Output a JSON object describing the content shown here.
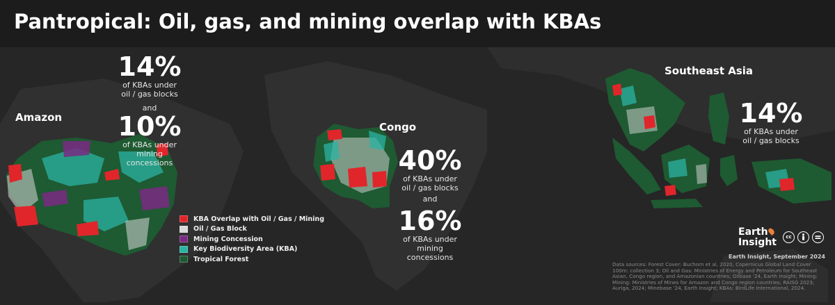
{
  "title": "Pantropical: Oil, gas, and mining overlap with KBAs",
  "regions": {
    "amazon": {
      "label": "Amazon",
      "stat1": {
        "value": "14%",
        "text": "of KBAs under\noil / gas blocks"
      },
      "connector": "and",
      "stat2": {
        "value": "10%",
        "text": "of KBAs under\nmining\nconcessions"
      }
    },
    "congo": {
      "label": "Congo",
      "stat1": {
        "value": "40%",
        "text": "of KBAs under\noil / gas blocks"
      },
      "connector": "and",
      "stat2": {
        "value": "16%",
        "text": "of KBAs under\nmining\nconcessions"
      }
    },
    "southeast_asia": {
      "label": "Southeast Asia",
      "stat1": {
        "value": "14%",
        "text": "of KBAs under\noil / gas blocks"
      }
    }
  },
  "legend": [
    {
      "label": "KBA Overlap with Oil / Gas / Mining",
      "color": "#e0262b"
    },
    {
      "label": "Oil / Gas Block",
      "color": "#d9d9d9"
    },
    {
      "label": "Mining Concession",
      "color": "#7a2a82"
    },
    {
      "label": "Key Biodiversity Area (KBA)",
      "color": "#2bb3a3"
    },
    {
      "label": "Tropical Forest",
      "color": "#1e5a32"
    }
  ],
  "logo": {
    "line1": "Earth",
    "line2": "Insight"
  },
  "license_icons": [
    "cc",
    "by",
    "nd"
  ],
  "credit": "Earth Insight,  September 2024",
  "sources": "Data sources: Forest Cover: Buchorn et al, 2020, Copernicus Global Land Cover 100m: collection 3; Oil and Gas: Ministries of Energy and Petroleum for Southeast Asian, Congo region, and Amazonian countries; Oilbase '24, Earth Insight; Mining: Mining: Ministries of Mines for Amazon and Congo region countries; RAISG 2023; Auriga, 2024; Minebase '24, Earth Insight; KBAs: BirdLife International, 2024."
}
